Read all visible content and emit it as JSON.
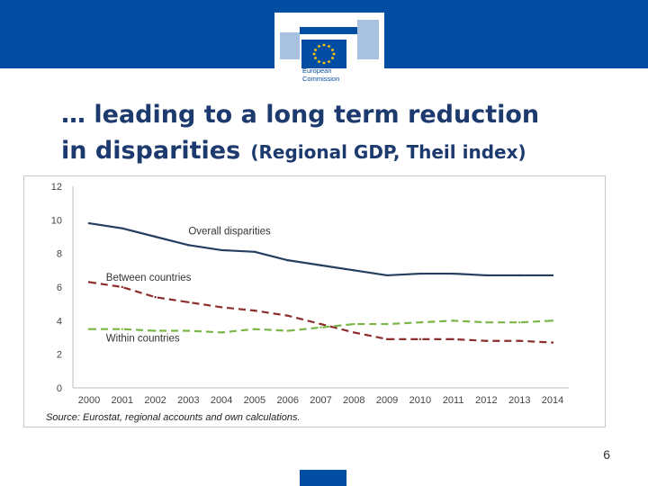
{
  "header": {
    "logo_text_line1": "European",
    "logo_text_line2": "Commission",
    "brand_color": "#034ea2"
  },
  "slide": {
    "title_line1": "… leading to a long term reduction",
    "title_line2_main": "in disparities",
    "title_line2_sub": "(Regional GDP, Theil index)",
    "page_number": "6"
  },
  "chart_data": {
    "type": "line",
    "x": [
      "2000",
      "2001",
      "2002",
      "2003",
      "2004",
      "2005",
      "2006",
      "2007",
      "2008",
      "2009",
      "2010",
      "2011",
      "2012",
      "2013",
      "2014"
    ],
    "ylim": [
      0,
      12
    ],
    "yticks": [
      "0",
      "2",
      "4",
      "6",
      "8",
      "10",
      "12"
    ],
    "grid": false,
    "series": [
      {
        "name": "Overall disparities",
        "color": "#243f60",
        "dash": "solid",
        "values": [
          9.8,
          9.5,
          9.0,
          8.5,
          8.2,
          8.1,
          7.6,
          7.3,
          7.0,
          6.7,
          6.8,
          6.8,
          6.7,
          6.7,
          6.7
        ]
      },
      {
        "name": "Between countries",
        "color": "#8b2e2e",
        "dash": "dashed",
        "values": [
          6.3,
          6.0,
          5.4,
          5.1,
          4.8,
          4.6,
          4.3,
          3.8,
          3.3,
          2.9,
          2.9,
          2.9,
          2.8,
          2.8,
          2.7
        ]
      },
      {
        "name": "Within countries",
        "color": "#7ab648",
        "dash": "dashed",
        "values": [
          3.5,
          3.5,
          3.4,
          3.4,
          3.3,
          3.5,
          3.4,
          3.6,
          3.8,
          3.8,
          3.9,
          4.0,
          3.9,
          3.9,
          4.0
        ]
      }
    ],
    "source": "Source: Eurostat, regional accounts and own calculations."
  }
}
